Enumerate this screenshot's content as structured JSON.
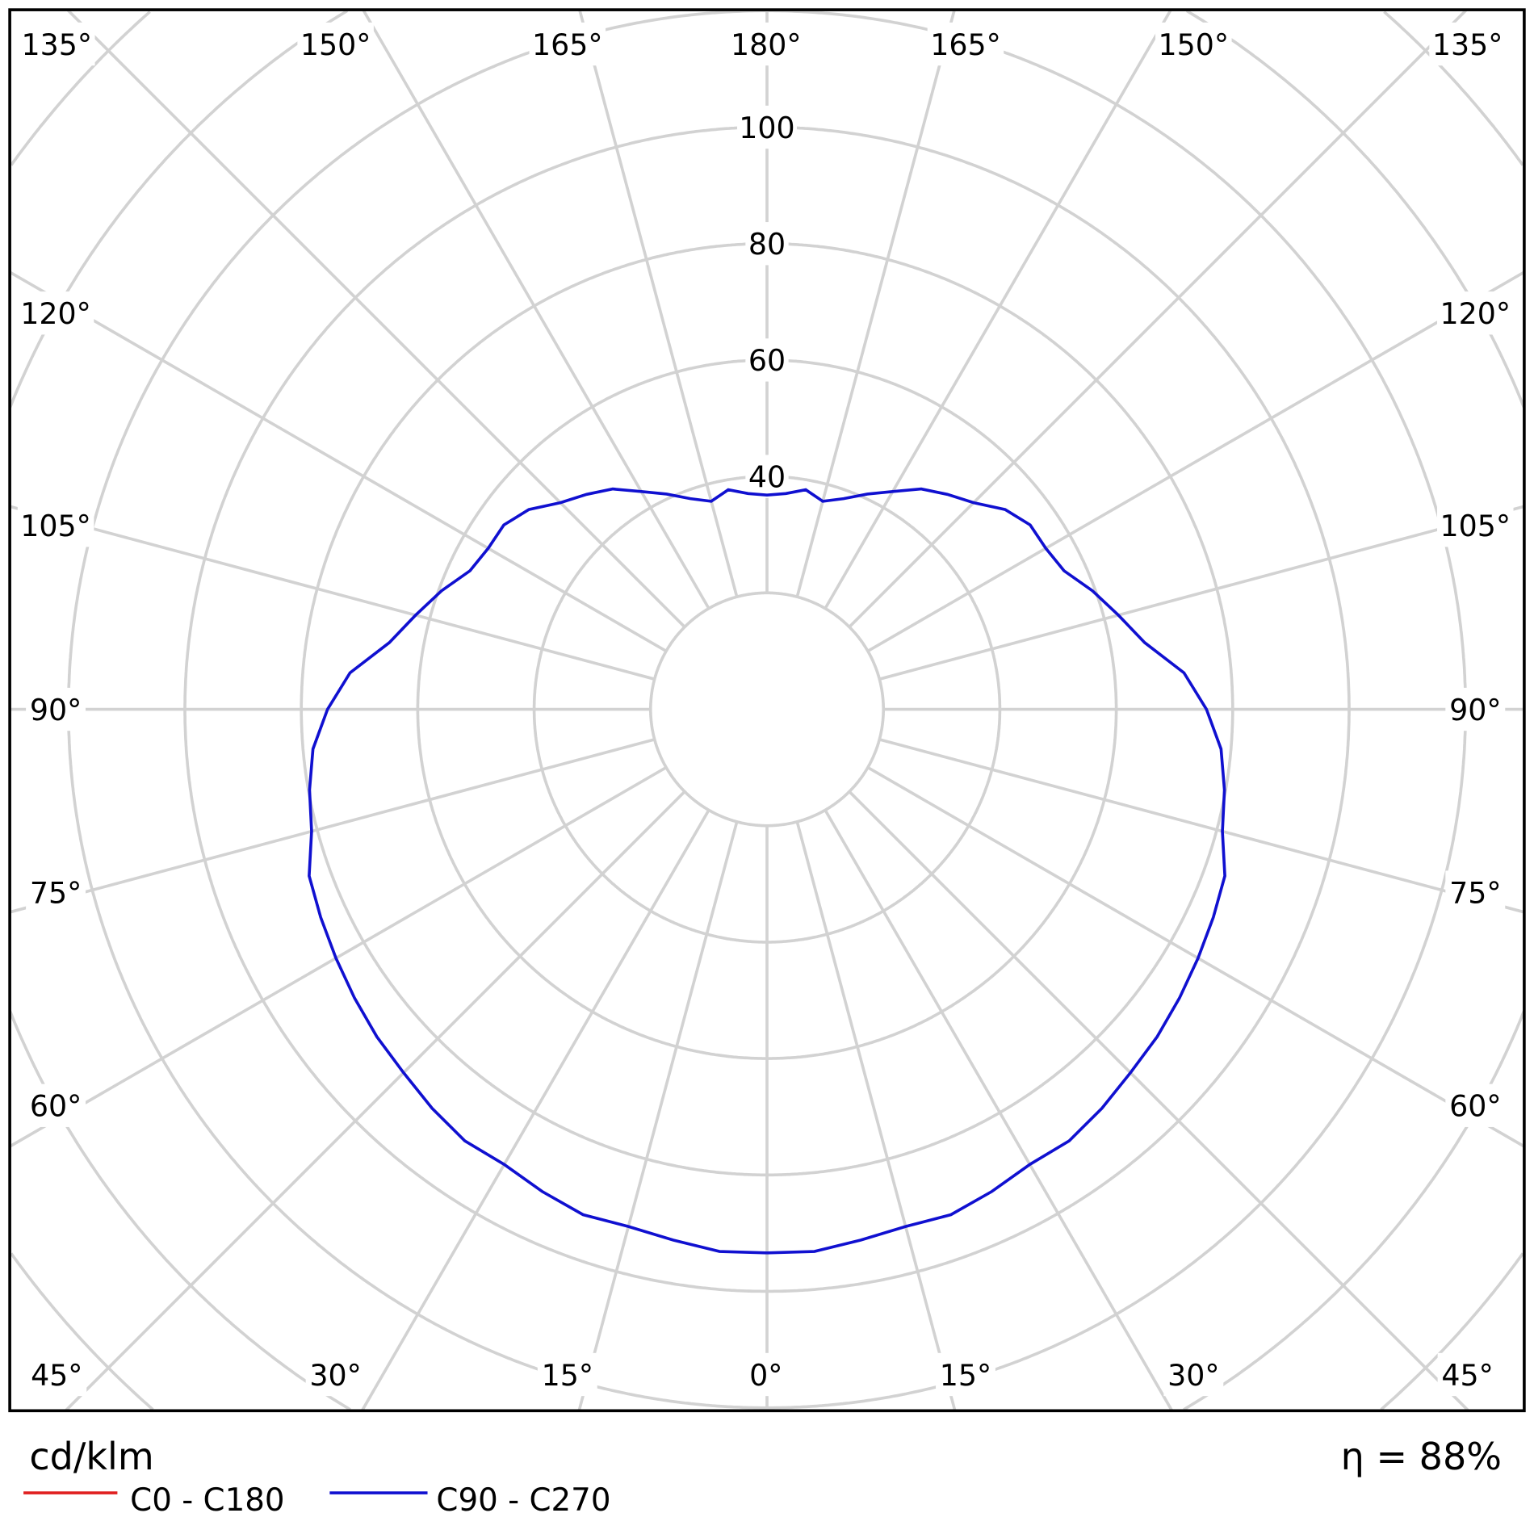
{
  "chart_data": {
    "type": "polar-line",
    "unit_label": "cd/klm",
    "efficiency_label": "η = 88%",
    "radial_ticks": [
      40,
      60,
      80,
      100
    ],
    "radial_rings": [
      20,
      40,
      60,
      80,
      100,
      120,
      140,
      160,
      180
    ],
    "angle_labels": {
      "top": [
        "135°",
        "150°",
        "165°",
        "180°",
        "165°",
        "150°",
        "135°"
      ],
      "bottom": [
        "45°",
        "30°",
        "15°",
        "0°",
        "15°",
        "30°",
        "45°"
      ],
      "left": [
        "120°",
        "105°",
        "90°",
        "75°",
        "60°"
      ],
      "right": [
        "120°",
        "105°",
        "90°",
        "75°",
        "60°"
      ]
    },
    "grid": true,
    "legend_position": "bottom-left",
    "series": [
      {
        "name": "C0 - C180",
        "color": "#e02020",
        "gamma": [],
        "values": []
      },
      {
        "name": "C90 - C270",
        "color": "#1010d0",
        "gamma": [
          0,
          5,
          10,
          15,
          20,
          25,
          30,
          35,
          40,
          45,
          50,
          55,
          60,
          65,
          70,
          75,
          80,
          85,
          90,
          95,
          100,
          105,
          110,
          115,
          120,
          125,
          130,
          135,
          140,
          145,
          150,
          155,
          160,
          165,
          170,
          175,
          180
        ],
        "values": [
          93.4,
          93.5,
          92.6,
          92.0,
          92.4,
          91.4,
          90.3,
          90.5,
          89.5,
          88.3,
          87.5,
          86.5,
          85.5,
          84.6,
          83.7,
          81.0,
          79.8,
          78.3,
          75.5,
          71.9,
          65.9,
          62.5,
          59.5,
          56.3,
          55.3,
          55.2,
          53.4,
          50.2,
          48.2,
          46.2,
          43.2,
          40.8,
          38.5,
          37.0,
          38.3,
          37.2,
          36.8
        ]
      }
    ]
  }
}
